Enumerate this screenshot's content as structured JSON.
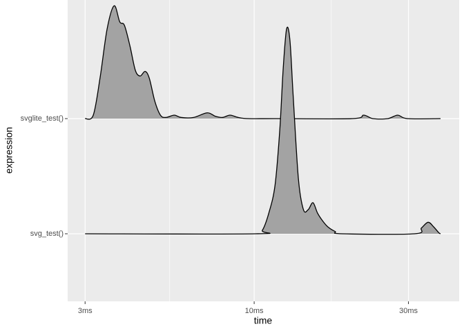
{
  "chart_data": {
    "type": "ridgeline",
    "x_label": "time",
    "y_label": "expression",
    "categories": [
      "svg_test()",
      "svglite_test()"
    ],
    "densities": [
      {
        "x": [
          3.0,
          10.1,
          10.6,
          11.1,
          11.6,
          12.0,
          12.3,
          12.6,
          12.9,
          13.2,
          13.7,
          14.2,
          14.7,
          15.2,
          15.7,
          16.3,
          16.9,
          17.8,
          18.7,
          31.3,
          32.9,
          34.5,
          35.9,
          37.2,
          37.7
        ],
        "values": [
          0,
          0,
          0.03,
          0.18,
          0.42,
          0.9,
          1.44,
          1.78,
          1.68,
          1.2,
          0.48,
          0.21,
          0.21,
          0.27,
          0.18,
          0.11,
          0.06,
          0.02,
          0,
          0,
          0.05,
          0.1,
          0.06,
          0.01,
          0
        ]
      },
      {
        "x": [
          3.0,
          3.18,
          3.34,
          3.51,
          3.69,
          3.84,
          3.97,
          4.13,
          4.29,
          4.44,
          4.6,
          4.74,
          4.93,
          5.13,
          5.33,
          5.66,
          5.94,
          6.49,
          7.16,
          7.59,
          7.98,
          8.42,
          8.93,
          9.61,
          11.7,
          20.1,
          21.8,
          23.3,
          25.9,
          27.8,
          29.8,
          37.7
        ],
        "values": [
          0,
          0.03,
          0.36,
          0.78,
          0.98,
          0.84,
          0.81,
          0.63,
          0.42,
          0.37,
          0.41,
          0.35,
          0.15,
          0.03,
          0.01,
          0.03,
          0.01,
          0.01,
          0.05,
          0.02,
          0.01,
          0.03,
          0.01,
          0,
          0,
          0,
          0.03,
          0,
          0,
          0.03,
          0,
          0
        ]
      }
    ],
    "fill": "#a3a3a3",
    "line_color": "#000000",
    "xlog": true,
    "xlim": [
      2.65,
      43.05
    ],
    "xticks": [
      {
        "value": 3,
        "label": "3ms"
      },
      {
        "value": 10,
        "label": "10ms"
      },
      {
        "value": 30,
        "label": "30ms"
      }
    ],
    "xminor": [
      5.48,
      17.32
    ],
    "grid": true
  }
}
